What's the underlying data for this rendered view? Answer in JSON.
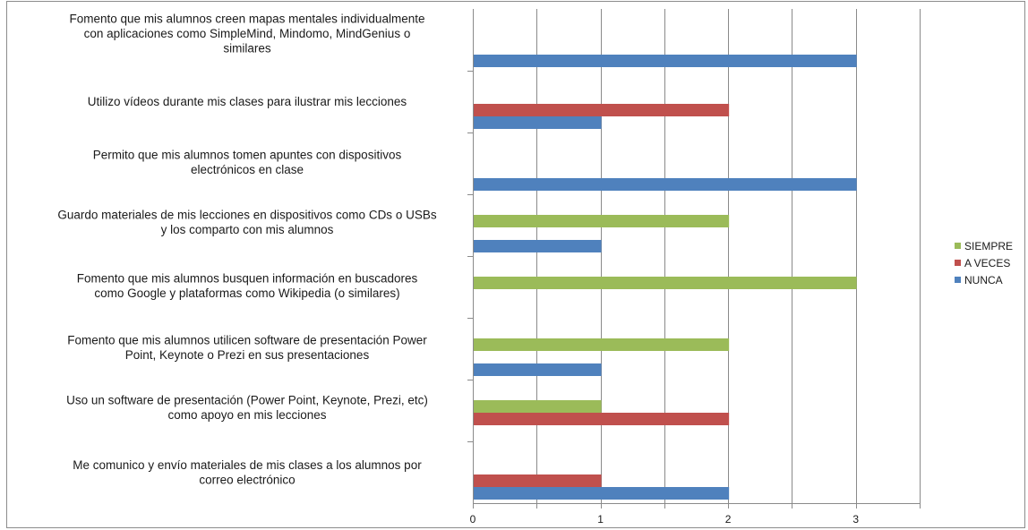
{
  "chart_data": {
    "type": "bar",
    "orientation": "horizontal",
    "categories": [
      [
        "Fomento que mis alumnos creen mapas mentales individualmente",
        "con aplicaciones como SimpleMind, Mindomo, MindGenius o",
        "similares"
      ],
      [
        "Utilizo vídeos durante mis clases para ilustrar mis lecciones"
      ],
      [
        "Permito que mis alumnos tomen apuntes con dispositivos",
        "electrónicos en clase"
      ],
      [
        "Guardo materiales de mis lecciones en dispositivos como CDs o USBs",
        "y los comparto con mis alumnos"
      ],
      [
        "Fomento que mis alumnos busquen información en buscadores",
        "como Google y plataformas como Wikipedia (o similares)"
      ],
      [
        "Fomento que mis alumnos utilicen software de presentación Power",
        "Point, Keynote o Prezi en sus presentaciones"
      ],
      [
        "Uso un software de presentación (Power Point, Keynote, Prezi, etc)",
        "como apoyo en mis lecciones"
      ],
      [
        "Me comunico y envío materiales de mis clases a los alumnos por",
        "correo electrónico"
      ]
    ],
    "series": [
      {
        "name": "SIEMPRE",
        "color": "#9bbb59",
        "values": [
          0,
          0,
          0,
          2,
          3,
          2,
          1,
          0
        ]
      },
      {
        "name": "A VECES",
        "color": "#c0504d",
        "values": [
          0,
          2,
          0,
          0,
          0,
          0,
          2,
          1
        ]
      },
      {
        "name": "NUNCA",
        "color": "#4f81bd",
        "values": [
          3,
          1,
          3,
          1,
          0,
          1,
          0,
          2
        ]
      }
    ],
    "xlim": [
      0,
      3.5
    ],
    "xticks": [
      "0",
      "1",
      "2",
      "3"
    ],
    "grid": true,
    "legend_position": "right"
  }
}
